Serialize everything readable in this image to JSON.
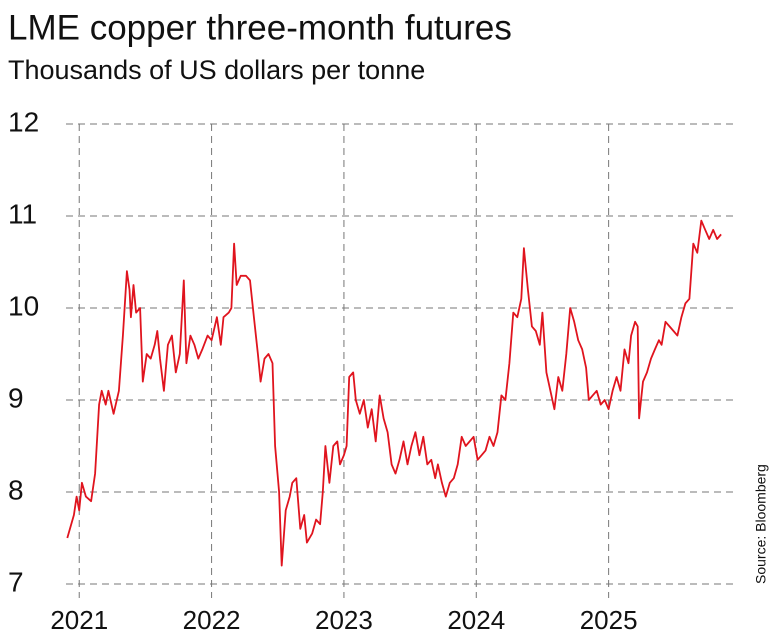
{
  "chart_data": {
    "type": "line",
    "title": "LME copper three-month futures",
    "subtitle": "Thousands of US dollars per tonne",
    "source": "Source: Bloomberg",
    "x": [
      2020.91,
      2020.96,
      2020.98,
      2021.0,
      2021.02,
      2021.05,
      2021.09,
      2021.12,
      2021.15,
      2021.17,
      2021.2,
      2021.22,
      2021.26,
      2021.3,
      2021.33,
      2021.36,
      2021.38,
      2021.39,
      2021.41,
      2021.43,
      2021.46,
      2021.48,
      2021.51,
      2021.54,
      2021.57,
      2021.59,
      2021.61,
      2021.64,
      2021.67,
      2021.7,
      2021.73,
      2021.76,
      2021.79,
      2021.81,
      2021.84,
      2021.87,
      2021.9,
      2021.93,
      2021.97,
      2022.0,
      2022.04,
      2022.07,
      2022.09,
      2022.13,
      2022.15,
      2022.17,
      2022.19,
      2022.22,
      2022.26,
      2022.29,
      2022.32,
      2022.35,
      2022.37,
      2022.4,
      2022.43,
      2022.46,
      2022.48,
      2022.51,
      2022.53,
      2022.56,
      2022.59,
      2022.61,
      2022.64,
      2022.67,
      2022.7,
      2022.72,
      2022.76,
      2022.79,
      2022.82,
      2022.84,
      2022.86,
      2022.89,
      2022.92,
      2022.95,
      2022.97,
      2023.0,
      2023.02,
      2023.04,
      2023.07,
      2023.09,
      2023.12,
      2023.15,
      2023.18,
      2023.21,
      2023.24,
      2023.27,
      2023.3,
      2023.33,
      2023.36,
      2023.39,
      2023.42,
      2023.45,
      2023.48,
      2023.51,
      2023.54,
      2023.57,
      2023.6,
      2023.63,
      2023.66,
      2023.69,
      2023.71,
      2023.74,
      2023.77,
      2023.8,
      2023.83,
      2023.86,
      2023.89,
      2023.92,
      2023.95,
      2023.98,
      2024.01,
      2024.04,
      2024.07,
      2024.1,
      2024.13,
      2024.16,
      2024.19,
      2024.22,
      2024.25,
      2024.28,
      2024.31,
      2024.34,
      2024.36,
      2024.39,
      2024.42,
      2024.45,
      2024.48,
      2024.5,
      2024.53,
      2024.56,
      2024.59,
      2024.62,
      2024.65,
      2024.68,
      2024.71,
      2024.74,
      2024.77,
      2024.8,
      2024.83,
      2024.85,
      2024.88,
      2024.91,
      2024.94,
      2024.97,
      2025.0,
      2025.03,
      2025.06,
      2025.09,
      2025.12,
      2025.15,
      2025.17,
      2025.2,
      2025.22,
      2025.23,
      2025.26,
      2025.29,
      2025.32,
      2025.35,
      2025.38,
      2025.4,
      2025.43,
      2025.46,
      2025.49,
      2025.52,
      2025.55,
      2025.58,
      2025.61,
      2025.64,
      2025.67,
      2025.7,
      2025.73,
      2025.76,
      2025.79,
      2025.82,
      2025.85
    ],
    "series": [
      {
        "name": "LME copper",
        "color": "#e0141e",
        "values": [
          7.5,
          7.75,
          7.95,
          7.8,
          8.1,
          7.95,
          7.9,
          8.2,
          8.95,
          9.1,
          8.95,
          9.1,
          8.85,
          9.1,
          9.7,
          10.4,
          10.2,
          9.9,
          10.25,
          9.95,
          10.0,
          9.2,
          9.5,
          9.45,
          9.6,
          9.75,
          9.45,
          9.1,
          9.6,
          9.7,
          9.3,
          9.5,
          10.3,
          9.4,
          9.7,
          9.6,
          9.45,
          9.55,
          9.7,
          9.65,
          9.9,
          9.6,
          9.9,
          9.95,
          10.0,
          10.7,
          10.25,
          10.35,
          10.35,
          10.3,
          9.9,
          9.5,
          9.2,
          9.45,
          9.5,
          9.4,
          8.5,
          8.0,
          7.2,
          7.8,
          7.95,
          8.1,
          8.15,
          7.6,
          7.75,
          7.45,
          7.55,
          7.7,
          7.65,
          8.0,
          8.5,
          8.1,
          8.5,
          8.55,
          8.3,
          8.4,
          8.5,
          9.25,
          9.3,
          9.0,
          8.85,
          9.0,
          8.7,
          8.9,
          8.55,
          9.05,
          8.8,
          8.65,
          8.3,
          8.2,
          8.35,
          8.55,
          8.3,
          8.5,
          8.65,
          8.4,
          8.6,
          8.3,
          8.35,
          8.15,
          8.3,
          8.1,
          7.95,
          8.1,
          8.15,
          8.3,
          8.6,
          8.5,
          8.55,
          8.6,
          8.35,
          8.4,
          8.45,
          8.6,
          8.5,
          8.65,
          9.05,
          9.0,
          9.4,
          9.95,
          9.9,
          10.1,
          10.65,
          10.2,
          9.8,
          9.75,
          9.6,
          9.95,
          9.3,
          9.1,
          8.9,
          9.25,
          9.1,
          9.5,
          10.0,
          9.85,
          9.65,
          9.55,
          9.35,
          9.0,
          9.05,
          9.1,
          8.95,
          9.0,
          8.9,
          9.1,
          9.25,
          9.1,
          9.55,
          9.4,
          9.7,
          9.85,
          9.8,
          8.8,
          9.2,
          9.3,
          9.45,
          9.55,
          9.65,
          9.6,
          9.85,
          9.8,
          9.75,
          9.7,
          9.9,
          10.05,
          10.1,
          10.7,
          10.6,
          10.95,
          10.85,
          10.75,
          10.85,
          10.75,
          10.8
        ]
      }
    ],
    "xlim": [
      2020.9,
      2025.97
    ],
    "xticks": [
      2021,
      2022,
      2023,
      2024,
      2025
    ],
    "ylim": [
      7,
      12
    ],
    "yticks": [
      7,
      8,
      9,
      10,
      11,
      12
    ],
    "grid": true
  }
}
